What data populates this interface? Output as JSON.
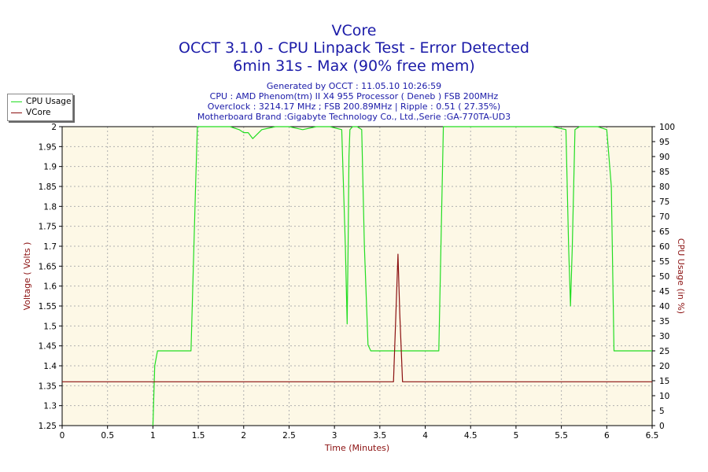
{
  "header": {
    "title_line1": "VCore",
    "title_line2": "OCCT 3.1.0 - CPU Linpack Test - Error Detected",
    "title_line3": "6min 31s - Max (90% free mem)",
    "info_line1": "Generated by OCCT : 11.05.10 10:26:59",
    "info_line2": "CPU : AMD Phenom(tm) II X4 955 Processor ( Deneb ) FSB 200MHz",
    "info_line3": "Overclock : 3214.17 MHz ; FSB 200.89MHz | Ripple : 0.51 ( 27.35%)",
    "info_line4": "Motherboard Brand :Gigabyte Technology Co., Ltd.,Serie :GA-770TA-UD3"
  },
  "colors": {
    "background": "#fdf8e6",
    "cpu_usage": "#22dd22",
    "vcore": "#8b1010",
    "title": "#1a1aa8",
    "axis_label": "#8b1010"
  },
  "chart_data": {
    "type": "line",
    "xlabel": "Time (Minutes)",
    "ylabel": "Voltage ( Volts )",
    "y2label": "CPU Usage (in %)",
    "xlim": [
      0,
      6.5
    ],
    "ylim": [
      1.25,
      2
    ],
    "y2lim": [
      0,
      100
    ],
    "xticks": [
      "0",
      "0.5",
      "1",
      "1.5",
      "2",
      "2.5",
      "3",
      "3.5",
      "4",
      "4.5",
      "5",
      "5.5",
      "6",
      "6.5"
    ],
    "yticks": [
      "1.25",
      "1.3",
      "1.35",
      "1.4",
      "1.45",
      "1.5",
      "1.55",
      "1.6",
      "1.65",
      "1.7",
      "1.75",
      "1.8",
      "1.85",
      "1.9",
      "1.95",
      "2"
    ],
    "y2ticks": [
      "0",
      "5",
      "10",
      "15",
      "20",
      "25",
      "30",
      "35",
      "40",
      "45",
      "50",
      "55",
      "60",
      "65",
      "70",
      "75",
      "80",
      "85",
      "90",
      "95",
      "100"
    ],
    "grid": true,
    "legend_position": "top-left",
    "series": [
      {
        "name": "CPU Usage",
        "axis": "right",
        "x": [
          1.0,
          1.02,
          1.05,
          1.1,
          1.2,
          1.3,
          1.42,
          1.47,
          1.49,
          1.55,
          1.7,
          1.85,
          1.95,
          2.0,
          2.05,
          2.1,
          2.2,
          2.35,
          2.5,
          2.65,
          2.8,
          2.95,
          3.08,
          3.12,
          3.14,
          3.15,
          3.16,
          3.17,
          3.2,
          3.25,
          3.3,
          3.33,
          3.37,
          3.4,
          3.5,
          3.7,
          3.9,
          4.1,
          4.15,
          4.2,
          4.25,
          4.5,
          4.8,
          5.1,
          5.4,
          5.55,
          5.58,
          5.6,
          5.62,
          5.65,
          5.7,
          5.8,
          5.9,
          6.0,
          6.05,
          6.08,
          6.15,
          6.3,
          6.5
        ],
        "y": [
          0,
          20,
          25,
          25,
          25,
          25,
          25,
          80,
          100,
          100,
          100,
          100,
          99,
          98,
          98,
          96,
          99,
          100,
          100,
          99,
          100,
          100,
          99,
          60,
          34,
          60,
          90,
          99,
          100,
          100,
          99,
          60,
          27,
          25,
          25,
          25,
          25,
          25,
          25,
          100,
          100,
          100,
          100,
          100,
          100,
          99,
          60,
          40,
          60,
          99,
          100,
          100,
          100,
          99,
          80,
          25,
          25,
          25,
          25
        ]
      },
      {
        "name": "VCore",
        "axis": "left",
        "x": [
          0.0,
          1.0,
          2.0,
          3.0,
          3.65,
          3.68,
          3.7,
          3.72,
          3.75,
          4.0,
          5.0,
          6.0,
          6.5
        ],
        "y": [
          1.36,
          1.36,
          1.36,
          1.36,
          1.36,
          1.55,
          1.68,
          1.53,
          1.36,
          1.36,
          1.36,
          1.36,
          1.36
        ]
      }
    ]
  }
}
